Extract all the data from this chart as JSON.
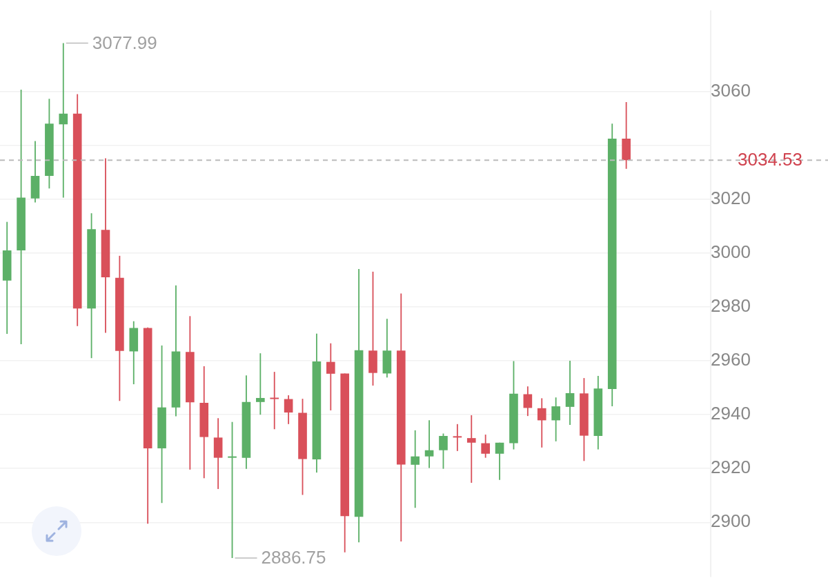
{
  "chart_data": {
    "type": "candlestick",
    "categories": [
      null,
      null,
      null,
      null,
      null,
      null,
      null,
      null,
      null,
      null,
      null,
      null,
      null,
      null,
      null,
      null,
      null,
      null,
      null,
      null,
      null,
      null,
      null,
      null,
      null,
      null,
      null,
      null,
      null,
      null,
      null,
      null,
      null,
      null,
      null,
      null,
      null,
      null,
      null,
      null,
      null,
      null,
      null,
      null,
      null
    ],
    "ohlc": [
      [
        2989.8,
        3011.6,
        2970,
        3001
      ],
      [
        3001,
        3060.7,
        2966.2,
        3020.6
      ],
      [
        3020.3,
        3041.6,
        3018.8,
        3028.7
      ],
      [
        3028.7,
        3057.3,
        3024,
        3048.1
      ],
      [
        3047.8,
        3077.99,
        3020.6,
        3051.8
      ],
      [
        3051.8,
        3059,
        2972.9,
        2979.4
      ],
      [
        2979.4,
        3014.8,
        2961,
        3008.9
      ],
      [
        3008.6,
        3035.2,
        2970.4,
        2991
      ],
      [
        2990.8,
        2999,
        2945.1,
        2963.7
      ],
      [
        2963.5,
        2974.7,
        2951.3,
        2972.2
      ],
      [
        2972.2,
        2972.4,
        2899.5,
        2927.5
      ],
      [
        2927.5,
        2965.7,
        2907.2,
        2942.7
      ],
      [
        2942.7,
        2988,
        2939.4,
        2963.5
      ],
      [
        2963.3,
        2976.6,
        2919.6,
        2944.6
      ],
      [
        2944.4,
        2958,
        2916.4,
        2931.7
      ],
      [
        2931.5,
        2938.7,
        2912.4,
        2924
      ],
      [
        2924,
        2937.3,
        2886.75,
        2924.2
      ],
      [
        2924,
        2954.6,
        2919.9,
        2944.7
      ],
      [
        2944.7,
        2962.8,
        2940,
        2946.2
      ],
      [
        2946,
        2955.9,
        2934.6,
        2945.8
      ],
      [
        2945.8,
        2947.2,
        2936.5,
        2940.8
      ],
      [
        2940.7,
        2945.9,
        2910.2,
        2923.5
      ],
      [
        2923.4,
        2970.1,
        2918.5,
        2959.8
      ],
      [
        2959.6,
        2966.5,
        2941.6,
        2955.2
      ],
      [
        2955.3,
        2955.3,
        2888.9,
        2902.3
      ],
      [
        2902.1,
        2994.1,
        2892.6,
        2963.9
      ],
      [
        2963.8,
        2993.1,
        2950.8,
        2955.5
      ],
      [
        2955.3,
        2975.6,
        2953.8,
        2963.8
      ],
      [
        2963.8,
        2985,
        2892.9,
        2921.5
      ],
      [
        2921.4,
        2934.2,
        2905.4,
        2924.5
      ],
      [
        2924.5,
        2937.9,
        2920.2,
        2926.8
      ],
      [
        2926.8,
        2933,
        2919.9,
        2932.1
      ],
      [
        2931.8,
        2936.5,
        2926.5,
        2931.5
      ],
      [
        2931.3,
        2939.8,
        2914.7,
        2929.6
      ],
      [
        2929.4,
        2932.6,
        2924,
        2925.5
      ],
      [
        2925.5,
        2929.6,
        2915.8,
        2929.6
      ],
      [
        2929.4,
        2959.9,
        2927.1,
        2947.8
      ],
      [
        2947.6,
        2950.5,
        2939.5,
        2942.5
      ],
      [
        2942.4,
        2946.1,
        2927.8,
        2937.9
      ],
      [
        2937.9,
        2946.4,
        2930.1,
        2943.1
      ],
      [
        2942.9,
        2960,
        2936.2,
        2948
      ],
      [
        2947.9,
        2953.6,
        2922.8,
        2932.2
      ],
      [
        2932.1,
        2954.4,
        2927.1,
        2949.7
      ],
      [
        2949.5,
        3048.1,
        2943.1,
        3042.5
      ],
      [
        3042.5,
        3056.1,
        3031.3,
        3034.53
      ]
    ],
    "colors": [
      "#5cb067",
      "#5cb067",
      "#5cb067",
      "#5cb067",
      "#5cb067",
      "#d9505a",
      "#5cb067",
      "#d9505a",
      "#d9505a",
      "#5cb067",
      "#d9505a",
      "#5cb067",
      "#5cb067",
      "#d9505a",
      "#d9505a",
      "#d9505a",
      "#5cb067",
      "#5cb067",
      "#5cb067",
      "#d9505a",
      "#d9505a",
      "#d9505a",
      "#5cb067",
      "#d9505a",
      "#d9505a",
      "#5cb067",
      "#d9505a",
      "#5cb067",
      "#d9505a",
      "#5cb067",
      "#5cb067",
      "#5cb067",
      "#d9505a",
      "#d9505a",
      "#d9505a",
      "#5cb067",
      "#5cb067",
      "#d9505a",
      "#d9505a",
      "#5cb067",
      "#5cb067",
      "#d9505a",
      "#5cb067",
      "#5cb067",
      "#d9505a"
    ],
    "ylim": [
      2880,
      3090
    ],
    "yticks": [
      2900,
      2920,
      2940,
      2960,
      2980,
      3000,
      3020,
      {
        "value": 3040,
        "label": null
      },
      3060
    ],
    "grid": "y",
    "ref_lines": [
      {
        "axis": "y",
        "value": 3034.53,
        "label": "3034.53",
        "color": "#bbbbbb",
        "line_style": "dashed"
      }
    ],
    "annotations": [
      "3077.99",
      "2886.75"
    ]
  }
}
